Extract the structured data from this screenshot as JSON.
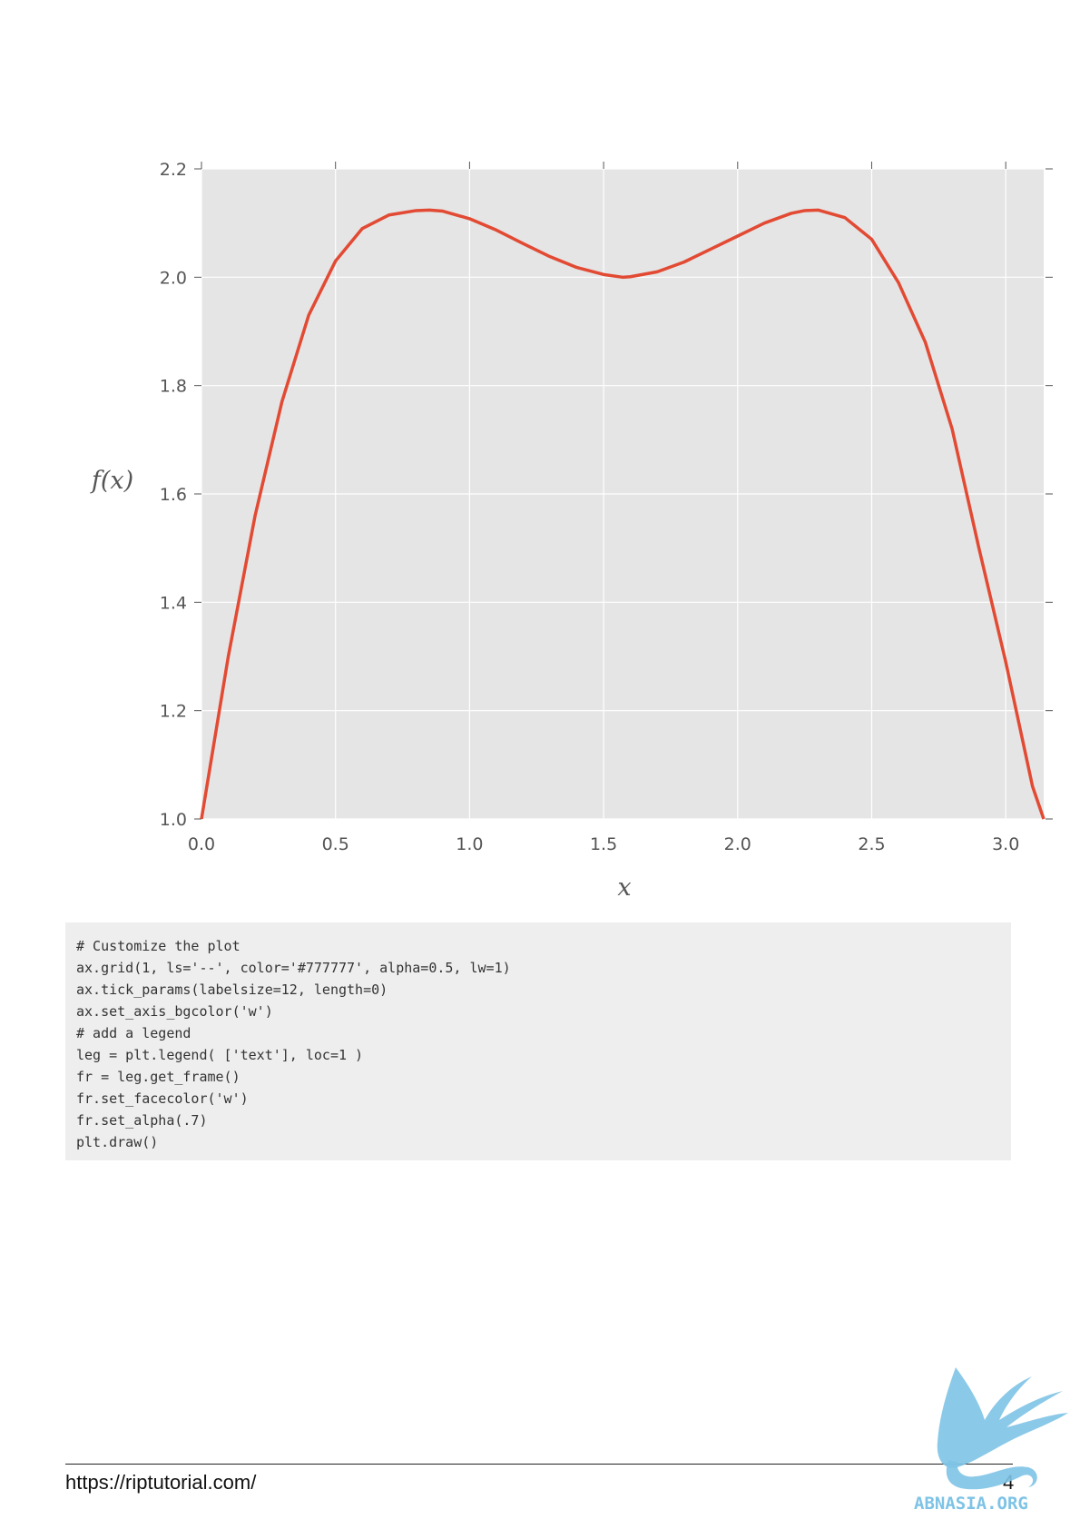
{
  "chart_data": {
    "type": "line",
    "xlabel": "x",
    "ylabel": "f(x)",
    "xlim": [
      0,
      3.1416
    ],
    "ylim": [
      1.0,
      2.2
    ],
    "xticks": [
      "0.0",
      "0.5",
      "1.0",
      "1.5",
      "2.0",
      "2.5",
      "3.0"
    ],
    "yticks": [
      "1.0",
      "1.2",
      "1.4",
      "1.6",
      "1.8",
      "2.0",
      "2.2"
    ],
    "grid": true,
    "background_color": "#e5e5e5",
    "series": [
      {
        "color": "#e24a33",
        "x": [
          0.0,
          0.1,
          0.2,
          0.3,
          0.4,
          0.5,
          0.6,
          0.7,
          0.8,
          0.85,
          0.9,
          1.0,
          1.1,
          1.2,
          1.3,
          1.4,
          1.5,
          1.5708,
          1.6,
          1.7,
          1.8,
          1.9,
          2.0,
          2.1,
          2.2,
          2.25,
          2.3,
          2.4,
          2.5,
          2.6,
          2.7,
          2.8,
          2.9,
          3.0,
          3.1,
          3.1416
        ],
        "y": [
          1.0,
          1.3,
          1.56,
          1.77,
          1.93,
          2.03,
          2.09,
          2.115,
          2.123,
          2.124,
          2.122,
          2.108,
          2.087,
          2.062,
          2.038,
          2.018,
          2.005,
          2.0,
          2.001,
          2.01,
          2.028,
          2.052,
          2.076,
          2.1,
          2.118,
          2.123,
          2.124,
          2.11,
          2.07,
          1.99,
          1.88,
          1.72,
          1.5,
          1.29,
          1.06,
          1.0
        ]
      }
    ]
  },
  "code": {
    "lines": [
      "# Customize the plot",
      "ax.grid(1, ls='--', color='#777777', alpha=0.5, lw=1)",
      "ax.tick_params(labelsize=12, length=0)",
      "ax.set_axis_bgcolor('w')",
      "# add a legend",
      "leg = plt.legend( ['text'], loc=1 )",
      "fr = leg.get_frame()",
      "fr.set_facecolor('w')",
      "fr.set_alpha(.7)",
      "plt.draw()"
    ]
  },
  "footer": {
    "url": "https://riptutorial.com/",
    "page_number": "4",
    "watermark": "ABNASIA.ORG"
  }
}
